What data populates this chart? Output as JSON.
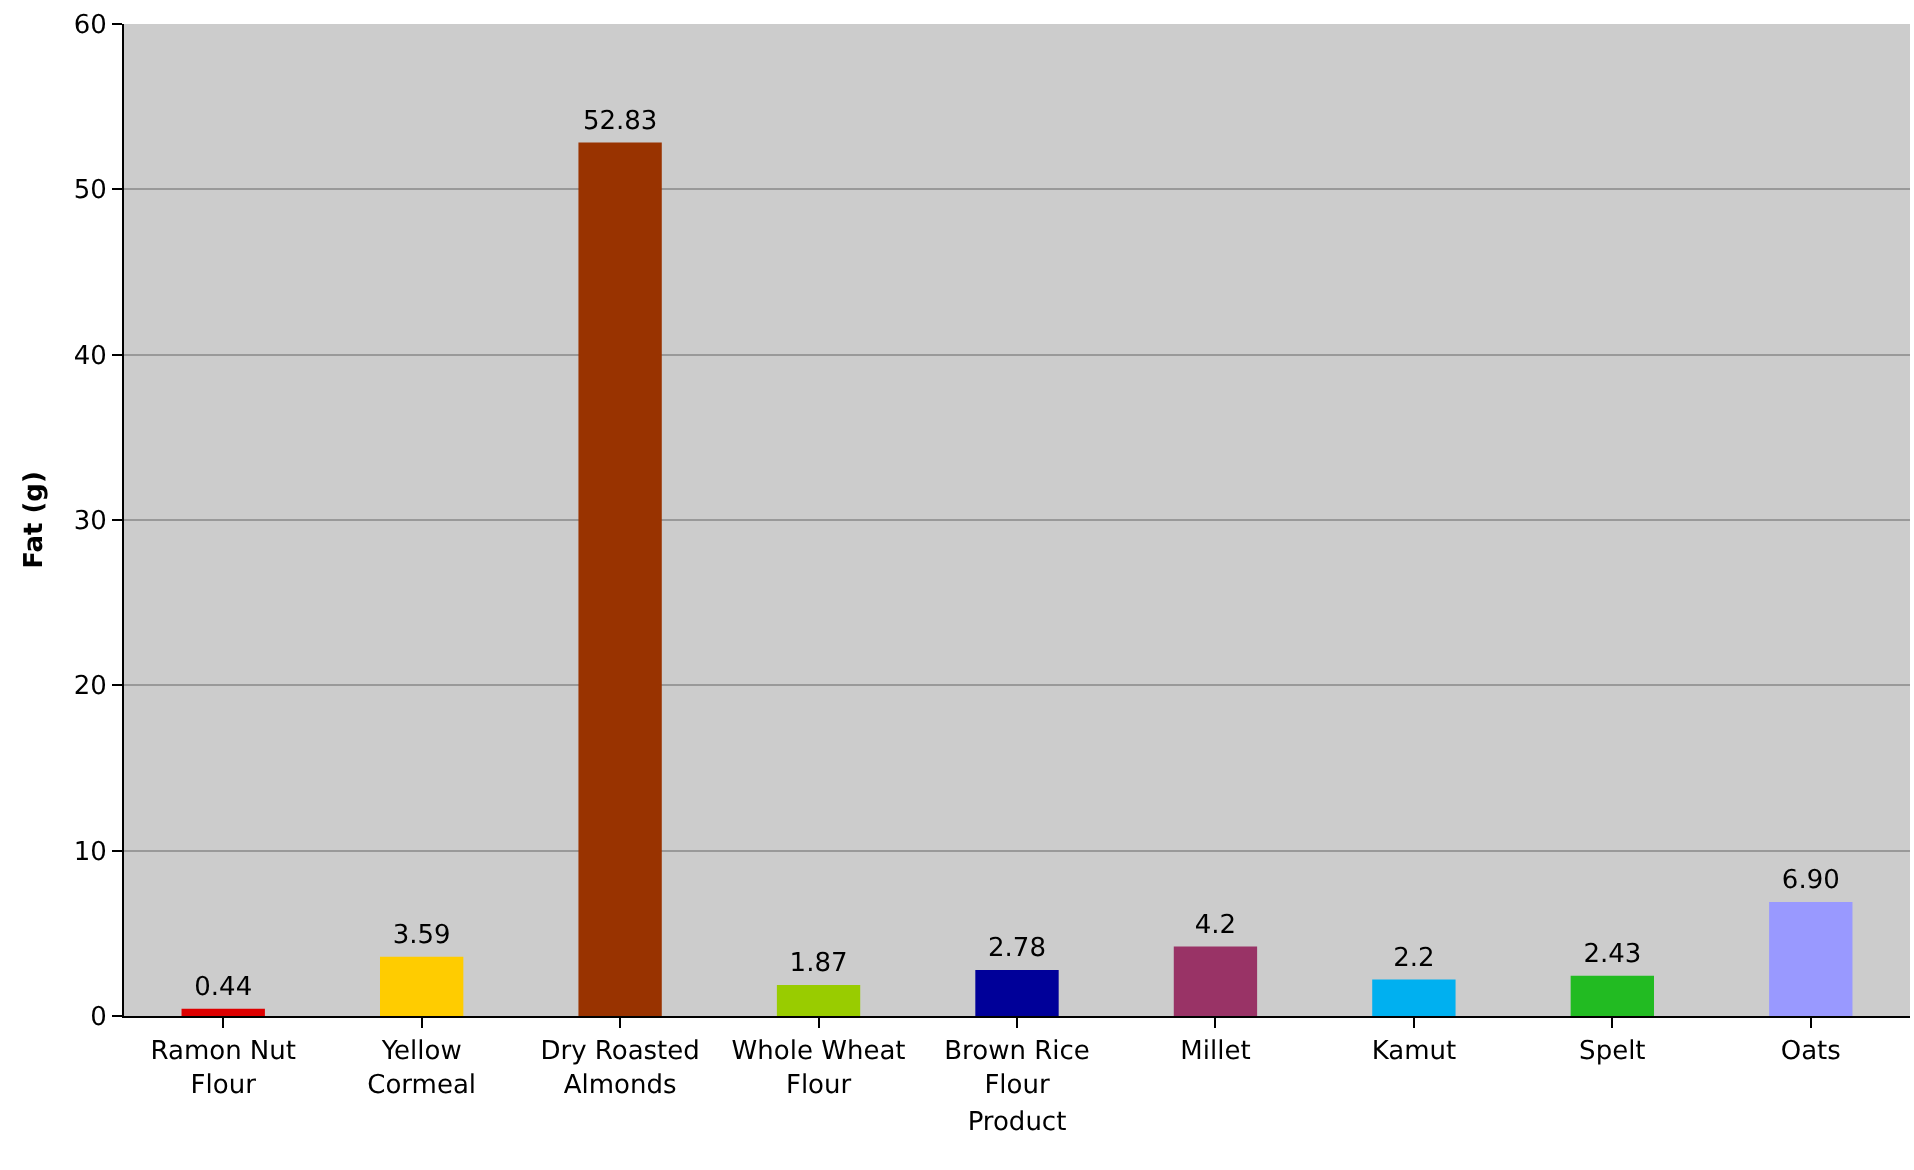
{
  "chart_data": {
    "type": "bar",
    "xlabel": "Product",
    "ylabel": "Fat (g)",
    "categories": [
      "Ramon Nut Flour",
      "Yellow Cormeal",
      "Dry Roasted Almonds",
      "Whole Wheat Flour",
      "Brown Rice Flour",
      "Millet",
      "Kamut",
      "Spelt",
      "Oats"
    ],
    "values": [
      0.44,
      3.59,
      52.83,
      1.87,
      2.78,
      4.2,
      2.2,
      2.43,
      6.9
    ],
    "value_labels": [
      "0.44",
      "3.59",
      "52.83",
      "1.87",
      "2.78",
      "4.2",
      "2.2",
      "2.43",
      "6.90"
    ],
    "colors": [
      "#dd0000",
      "#ffcc00",
      "#993300",
      "#99cc00",
      "#000099",
      "#993366",
      "#00b0f0",
      "#22bb22",
      "#9999ff"
    ],
    "ylim": [
      0,
      60
    ],
    "yticks": [
      0,
      10,
      20,
      30,
      40,
      50,
      60
    ],
    "grid": "y"
  }
}
